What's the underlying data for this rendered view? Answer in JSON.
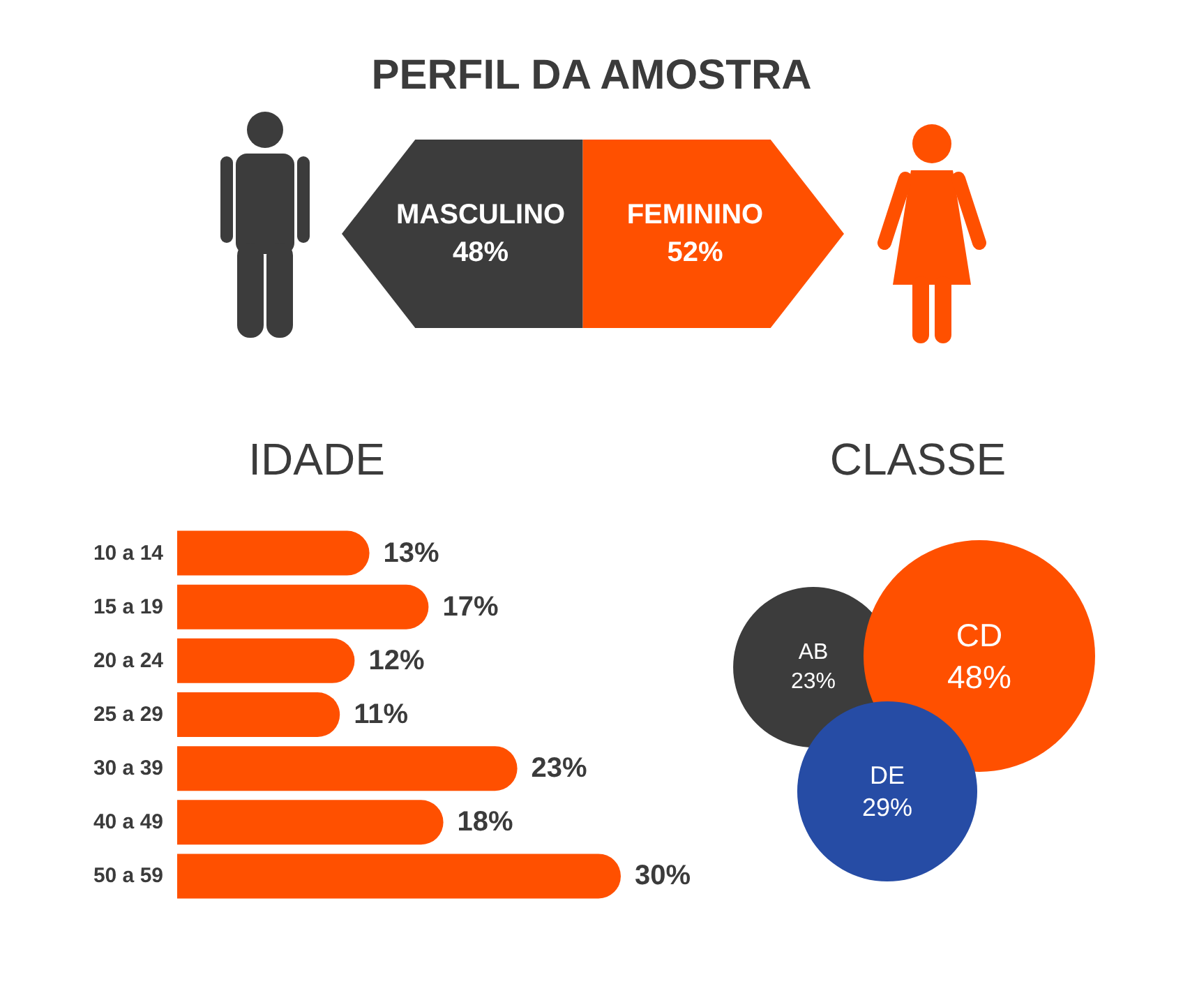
{
  "chart_data": [
    {
      "type": "bar",
      "title": "PERFIL DA AMOSTRA",
      "orientation": "horizontal",
      "stacked": true,
      "categories": [
        null
      ],
      "series": [
        {
          "name": "MASCULINO",
          "color": "#3c3c3c",
          "values": [
            48
          ],
          "value_labels": [
            "48%"
          ]
        },
        {
          "name": "FEMININO",
          "color": "#ff5000",
          "values": [
            52
          ],
          "value_labels": [
            "52%"
          ]
        }
      ],
      "tick_labels": false
    },
    {
      "type": "bar",
      "title": "IDADE",
      "orientation": "horizontal",
      "categories": [
        "10 a 14",
        "15 a 19",
        "20 a 24",
        "25 a 29",
        "30 a 39",
        "40 a 49",
        "50 a 59"
      ],
      "values": [
        13,
        17,
        12,
        11,
        23,
        18,
        30
      ],
      "color": "#ff5000",
      "value_labels": [
        "13%",
        "17%",
        "12%",
        "11%",
        "23%",
        "18%",
        "30%"
      ],
      "tick_labels": "y"
    },
    {
      "type": "other",
      "title": "CLASSE",
      "categories": [
        "AB",
        "CD",
        "DE"
      ],
      "values": [
        23,
        48,
        29
      ],
      "colors": [
        "#3c3c3c",
        "#ff5000",
        "#264ca5"
      ],
      "value_labels": [
        "23%",
        "48%",
        "29%"
      ]
    }
  ]
}
